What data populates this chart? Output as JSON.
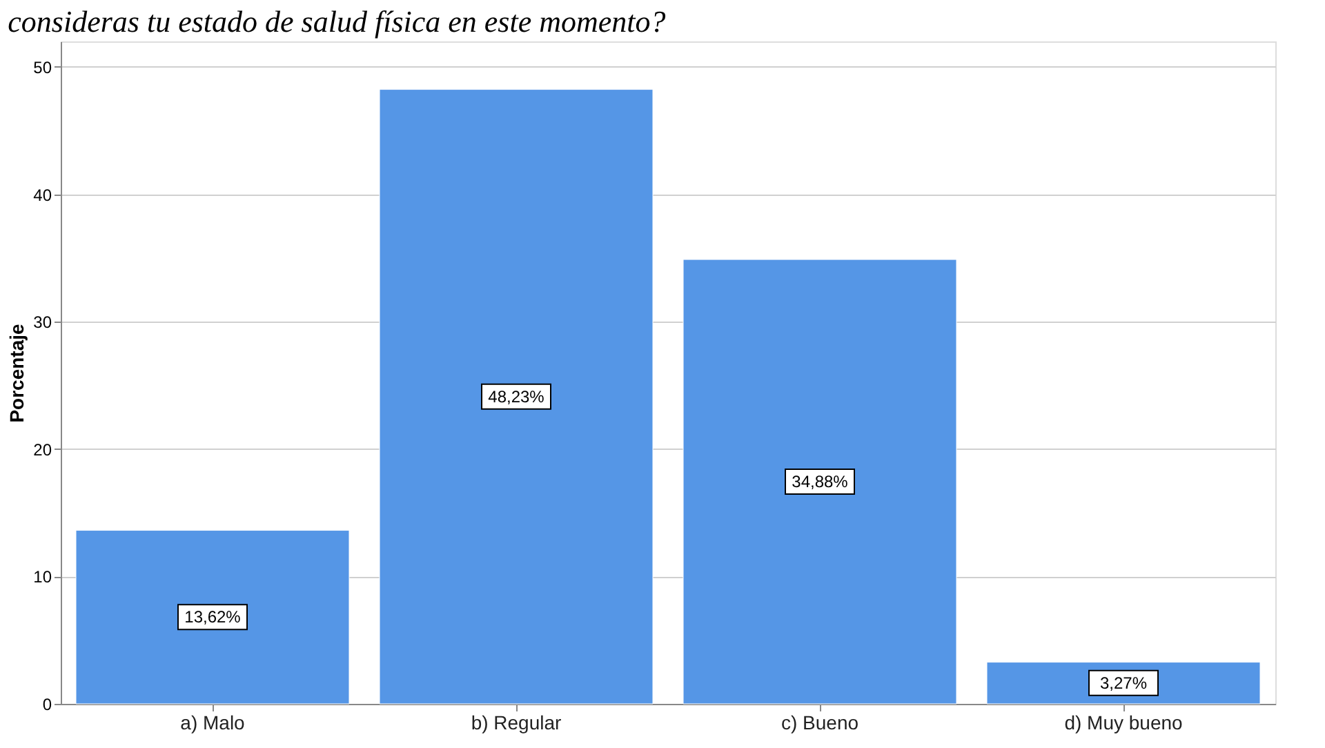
{
  "chart_data": {
    "type": "bar",
    "title": "consideras tu estado de salud física en este momento?",
    "ylabel": "Porcentaje",
    "categories": [
      "a) Malo",
      "b) Regular",
      "c) Bueno",
      "d) Muy bueno"
    ],
    "values": [
      13.62,
      48.23,
      34.88,
      3.27
    ],
    "value_labels": [
      "13,62%",
      "48,23%",
      "34,88%",
      "3,27%"
    ],
    "color": "#5596e6",
    "ylim": [
      0,
      52
    ],
    "yticks": [
      0,
      10,
      20,
      30,
      40,
      50
    ],
    "grid": "y"
  }
}
